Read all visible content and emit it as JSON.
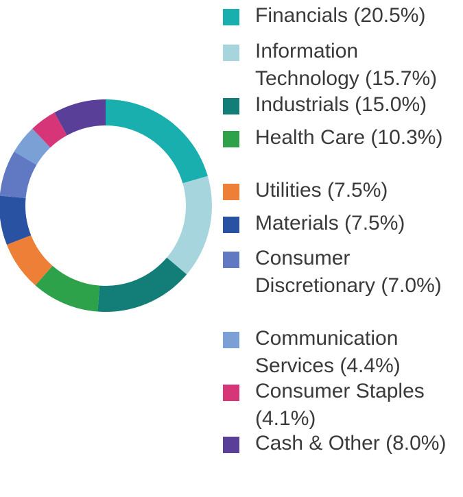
{
  "chart_data": {
    "type": "pie",
    "variant": "donut",
    "title": "",
    "legend_position": "right",
    "slices": [
      {
        "label": "Financials (20.5%)",
        "value": 20.5,
        "color": "#1aafaf"
      },
      {
        "label": "Information Technology (15.7%)",
        "value": 15.7,
        "color": "#a6d5de"
      },
      {
        "label": "Industrials (15.0%)",
        "value": 15.0,
        "color": "#137d77"
      },
      {
        "label": "Health Care (10.3%)",
        "value": 10.3,
        "color": "#2ea24a"
      },
      {
        "label": "Utilities (7.5%)",
        "value": 7.5,
        "color": "#ee7f36"
      },
      {
        "label": "Materials (7.5%)",
        "value": 7.5,
        "color": "#2a52a2"
      },
      {
        "label": "Consumer Discretionary (7.0%)",
        "value": 7.0,
        "color": "#6079c2"
      },
      {
        "label": "Communication Services (4.4%)",
        "value": 4.4,
        "color": "#7aa0d6"
      },
      {
        "label": "Consumer Staples (4.1%)",
        "value": 4.1,
        "color": "#d63677"
      },
      {
        "label": "Cash & Other (8.0%)",
        "value": 8.0,
        "color": "#5a3f98"
      }
    ]
  }
}
